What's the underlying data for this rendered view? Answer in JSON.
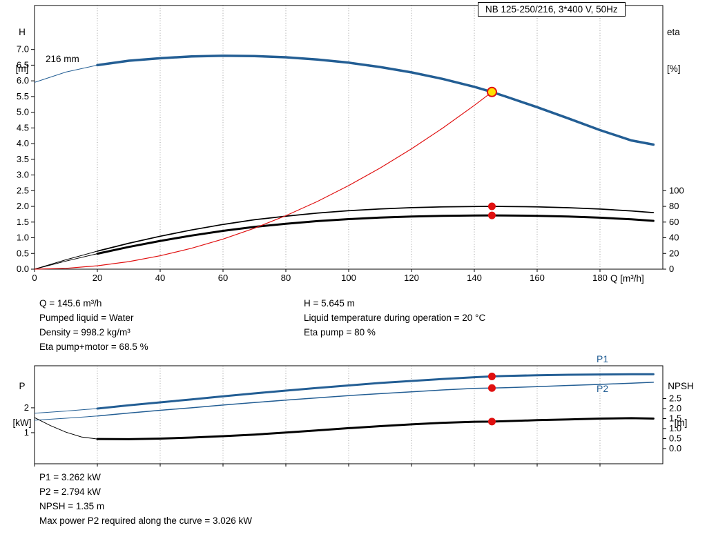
{
  "title_box": "NB 125-250/216, 3*400 V, 50Hz",
  "labels": {
    "head_axis_sym": "H",
    "head_axis_unit": "[m]",
    "eta_axis_sym": "eta",
    "eta_axis_unit": "[%]",
    "flow_axis": "Q [m³/h]",
    "power_axis_sym": "P",
    "power_axis_unit": "[kW]",
    "npsh_axis_sym": "NPSH",
    "npsh_axis_unit": "[m]",
    "impeller": "216 mm",
    "p1": "P1",
    "p2": "P2"
  },
  "info_top": {
    "col1": [
      "Q = 145.6 m³/h",
      "Pumped liquid = Water",
      "Density = 998.2 kg/m³",
      "Eta pump+motor = 68.5 %"
    ],
    "col2": [
      "H = 5.645 m",
      "Liquid temperature during operation = 20 °C",
      "Eta pump = 80 %"
    ]
  },
  "info_bottom": [
    "P1 = 3.262 kW",
    "P2 = 2.794 kW",
    "NPSH = 1.35 m",
    "Max power P2 required along the curve = 3.026 kW"
  ],
  "colors": {
    "curve_blue": "#235e94",
    "curve_red": "#e01010",
    "curve_black": "#000000",
    "duty_fill": "#ffe000",
    "grid": "#9a9a9a"
  },
  "chart_data": [
    {
      "type": "line",
      "title": "NB 125-250/216, 3*400 V, 50Hz",
      "xlabel": "Q [m³/h]",
      "ylabel": "H [m]",
      "y2label": "eta [%]",
      "xlim": [
        0,
        200
      ],
      "grid": "vertical-dotted",
      "x_ticks": [
        {
          "q": 0,
          "label": "0"
        },
        {
          "q": 20,
          "label": "20"
        },
        {
          "q": 40,
          "label": "40"
        },
        {
          "q": 60,
          "label": "60"
        },
        {
          "q": 80,
          "label": "80"
        },
        {
          "q": 100,
          "label": "100"
        },
        {
          "q": 120,
          "label": "120"
        },
        {
          "q": 140,
          "label": "140"
        },
        {
          "q": 160,
          "label": "160"
        },
        {
          "q": 180,
          "label": "180"
        }
      ],
      "axes": {
        "H": {
          "side": "left",
          "lim": [
            0,
            8.4
          ],
          "ticks": [
            {
              "v": 0,
              "label": "0.0"
            },
            {
              "v": 0.5,
              "label": "0.5"
            },
            {
              "v": 1,
              "label": "1.0"
            },
            {
              "v": 1.5,
              "label": "1.5"
            },
            {
              "v": 2,
              "label": "2.0"
            },
            {
              "v": 2.5,
              "label": "2.5"
            },
            {
              "v": 3,
              "label": "3.0"
            },
            {
              "v": 3.5,
              "label": "3.5"
            },
            {
              "v": 4,
              "label": "4.0"
            },
            {
              "v": 4.5,
              "label": "4.5"
            },
            {
              "v": 5,
              "label": "5.0"
            },
            {
              "v": 5.5,
              "label": "5.5"
            },
            {
              "v": 6,
              "label": "6.0"
            },
            {
              "v": 6.5,
              "label": "6.5"
            },
            {
              "v": 7,
              "label": "7.0"
            }
          ]
        },
        "eta": {
          "side": "right",
          "lim": [
            0,
            336
          ],
          "ticks": [
            {
              "v": 0,
              "label": "0"
            },
            {
              "v": 20,
              "label": "20"
            },
            {
              "v": 40,
              "label": "40"
            },
            {
              "v": 60,
              "label": "60"
            },
            {
              "v": 80,
              "label": "80"
            },
            {
              "v": 100,
              "label": "100"
            }
          ]
        }
      },
      "series": [
        {
          "name": "eta-pump-curve",
          "axis": "eta",
          "color": "#000000",
          "width": 1.75,
          "thin_until": 18,
          "x": [
            0,
            10,
            20,
            30,
            40,
            50,
            60,
            70,
            80,
            90,
            100,
            110,
            120,
            130,
            140,
            145.6,
            150,
            160,
            170,
            180,
            190,
            197
          ],
          "y": [
            0,
            12,
            23,
            33,
            42,
            50,
            57,
            63,
            67.5,
            71.5,
            74.5,
            76.8,
            78.4,
            79.4,
            79.9,
            80,
            79.9,
            79.4,
            78.3,
            76.6,
            74.2,
            72
          ]
        },
        {
          "name": "eta-pump-motor-curve",
          "axis": "eta",
          "color": "#000000",
          "width": 3,
          "thin_until": 18,
          "x": [
            0,
            10,
            20,
            30,
            40,
            50,
            60,
            70,
            80,
            90,
            100,
            110,
            120,
            130,
            140,
            145.6,
            150,
            160,
            170,
            180,
            190,
            197
          ],
          "y": [
            0,
            10.3,
            19.7,
            28.3,
            36,
            42.8,
            48.8,
            53.9,
            57.8,
            61.2,
            63.8,
            65.8,
            67.1,
            68,
            68.4,
            68.5,
            68.4,
            68,
            67,
            65.6,
            63.5,
            61.6
          ]
        },
        {
          "name": "system-curve",
          "axis": "H",
          "color": "#e01010",
          "width": 1.2,
          "x": [
            0,
            10,
            20,
            30,
            40,
            50,
            60,
            70,
            80,
            90,
            100,
            110,
            120,
            130,
            140,
            145.6
          ],
          "y": [
            0,
            0.027,
            0.107,
            0.24,
            0.426,
            0.666,
            0.959,
            1.305,
            1.704,
            2.156,
            2.662,
            3.221,
            3.834,
            4.499,
            5.218,
            5.645
          ]
        },
        {
          "name": "pump-curve-216mm",
          "axis": "H",
          "color": "#235e94",
          "width": 3.5,
          "thin_until": 18,
          "x": [
            0,
            10,
            20,
            30,
            40,
            50,
            60,
            70,
            80,
            90,
            100,
            110,
            120,
            130,
            140,
            145.6,
            150,
            160,
            170,
            180,
            190,
            197
          ],
          "y": [
            5.95,
            6.28,
            6.5,
            6.64,
            6.72,
            6.78,
            6.8,
            6.79,
            6.75,
            6.68,
            6.58,
            6.44,
            6.27,
            6.06,
            5.81,
            5.645,
            5.5,
            5.16,
            4.8,
            4.43,
            4.1,
            3.97
          ]
        }
      ],
      "markers": [
        {
          "name": "eta-pump-point",
          "axis": "eta",
          "x": 145.6,
          "y": 80,
          "r": 5.5,
          "fill": "#e01010"
        },
        {
          "name": "eta-pump-motor-point",
          "axis": "eta",
          "x": 145.6,
          "y": 68.5,
          "r": 5.5,
          "fill": "#e01010"
        },
        {
          "name": "duty-point",
          "axis": "H",
          "x": 145.6,
          "y": 5.645,
          "r": 6.5,
          "fill": "#ffe000",
          "stroke": "#e01010",
          "stroke_width": 2
        }
      ]
    },
    {
      "type": "line",
      "title": "Power and NPSH curves",
      "xlabel": "Q [m³/h]",
      "ylabel": "P [kW]",
      "y2label": "NPSH [m]",
      "xlim": [
        0,
        200
      ],
      "grid": "vertical-dotted",
      "x_ticks": [
        {
          "q": 0
        },
        {
          "q": 20
        },
        {
          "q": 40
        },
        {
          "q": 60
        },
        {
          "q": 80
        },
        {
          "q": 100
        },
        {
          "q": 120
        },
        {
          "q": 140
        },
        {
          "q": 160
        },
        {
          "q": 180
        }
      ],
      "axes": {
        "P": {
          "side": "left",
          "lim": [
            -0.25,
            3.69
          ],
          "ticks": [
            {
              "v": 1,
              "label": "1"
            },
            {
              "v": 2,
              "label": "2"
            }
          ]
        },
        "NPSH": {
          "side": "right",
          "lim": [
            -0.76,
            4.14
          ],
          "ticks": [
            {
              "v": 0,
              "label": "0.0"
            },
            {
              "v": 0.5,
              "label": "0.5"
            },
            {
              "v": 1,
              "label": "1.0"
            },
            {
              "v": 1.5,
              "label": "1.5"
            },
            {
              "v": 2,
              "label": "2.0"
            },
            {
              "v": 2.5,
              "label": "2.5"
            }
          ]
        }
      },
      "series": [
        {
          "name": "p1-curve",
          "axis": "P",
          "color": "#235e94",
          "width": 3,
          "thin_until": 18,
          "x": [
            0,
            10,
            20,
            30,
            40,
            50,
            60,
            70,
            80,
            90,
            100,
            110,
            120,
            130,
            140,
            145.6,
            150,
            160,
            170,
            180,
            190,
            197
          ],
          "y": [
            1.78,
            1.87,
            1.97,
            2.1,
            2.22,
            2.34,
            2.46,
            2.58,
            2.69,
            2.8,
            2.9,
            3.0,
            3.08,
            3.16,
            3.23,
            3.262,
            3.28,
            3.31,
            3.33,
            3.34,
            3.35,
            3.35
          ]
        },
        {
          "name": "p2-curve",
          "axis": "P",
          "color": "#235e94",
          "width": 1.5,
          "thin_until": 18,
          "x": [
            0,
            10,
            20,
            30,
            40,
            50,
            60,
            70,
            80,
            90,
            100,
            110,
            120,
            130,
            140,
            145.6,
            150,
            160,
            170,
            180,
            190,
            197
          ],
          "y": [
            1.5,
            1.58,
            1.67,
            1.79,
            1.9,
            2.0,
            2.11,
            2.21,
            2.31,
            2.4,
            2.49,
            2.57,
            2.64,
            2.72,
            2.78,
            2.794,
            2.81,
            2.85,
            2.9,
            2.94,
            2.99,
            3.026
          ]
        },
        {
          "name": "npsh-curve",
          "axis": "NPSH",
          "color": "#000000",
          "width": 3,
          "thin_until": 18,
          "x": [
            0,
            5,
            10,
            15,
            20,
            30,
            40,
            50,
            60,
            70,
            80,
            90,
            100,
            110,
            120,
            130,
            140,
            145.6,
            150,
            160,
            170,
            180,
            190,
            197
          ],
          "y": [
            1.55,
            1.15,
            0.82,
            0.58,
            0.48,
            0.47,
            0.5,
            0.55,
            0.62,
            0.7,
            0.8,
            0.91,
            1.02,
            1.12,
            1.21,
            1.29,
            1.34,
            1.35,
            1.37,
            1.42,
            1.46,
            1.5,
            1.52,
            1.5
          ]
        }
      ],
      "markers": [
        {
          "name": "p1-duty-point",
          "axis": "P",
          "x": 145.6,
          "y": 3.262,
          "r": 5.5,
          "fill": "#e01010"
        },
        {
          "name": "p2-duty-point",
          "axis": "P",
          "x": 145.6,
          "y": 2.794,
          "r": 5.5,
          "fill": "#e01010"
        },
        {
          "name": "npsh-duty-point",
          "axis": "NPSH",
          "x": 145.6,
          "y": 1.35,
          "r": 5.5,
          "fill": "#e01010"
        }
      ]
    }
  ]
}
